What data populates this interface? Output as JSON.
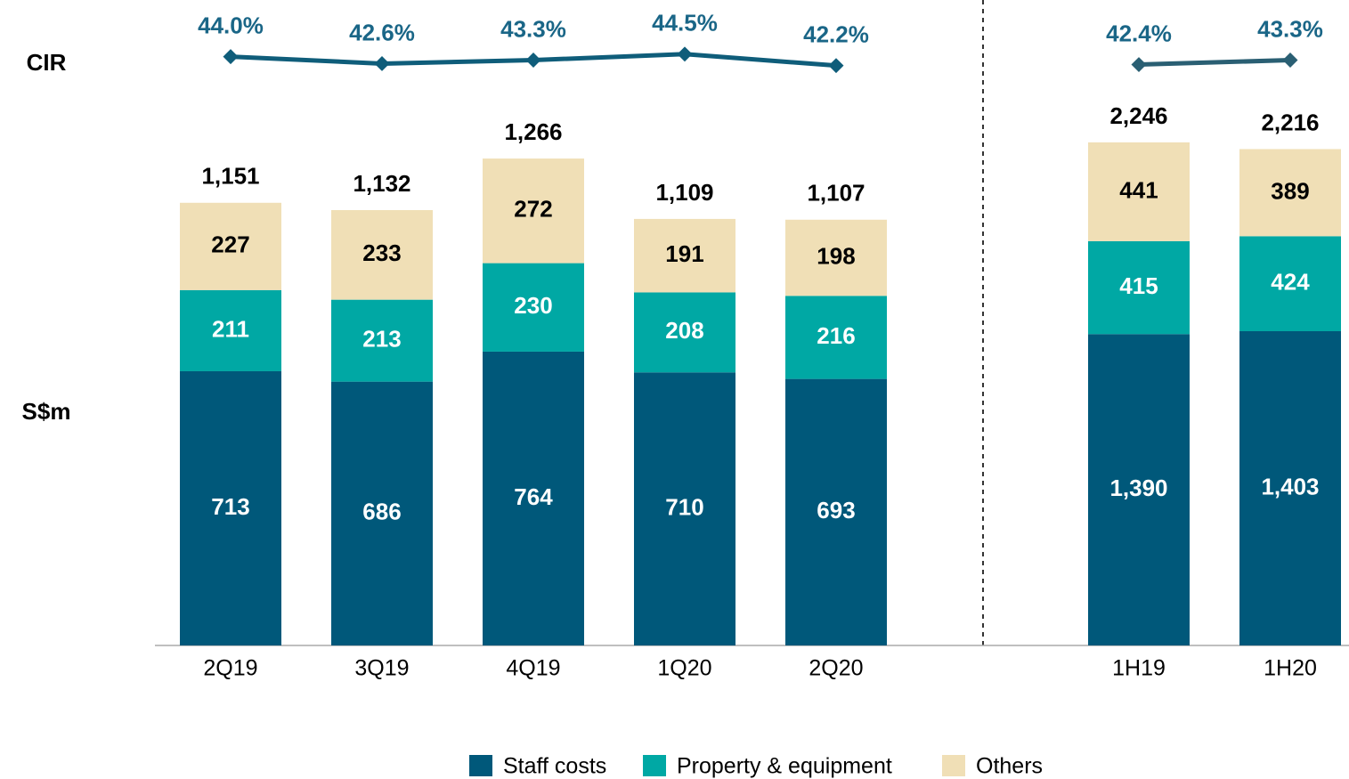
{
  "chart_data": [
    {
      "type": "bar",
      "stacked": true,
      "ylabel": "S$m",
      "y2_label": "CIR",
      "categories": [
        "2Q19",
        "3Q19",
        "4Q19",
        "1Q20",
        "2Q20"
      ],
      "ylim": [
        0,
        1500
      ],
      "y2lim": [
        30,
        50
      ],
      "series": [
        {
          "name": "Staff costs",
          "color": "#00587a",
          "values": [
            713,
            686,
            764,
            710,
            693
          ]
        },
        {
          "name": "Property & equipment",
          "color": "#00a8a4",
          "values": [
            211,
            213,
            230,
            208,
            216
          ]
        },
        {
          "name": "Others",
          "color": "#f0dfb6",
          "values": [
            227,
            233,
            272,
            191,
            198
          ]
        }
      ],
      "totals": [
        1151,
        1132,
        1266,
        1109,
        1107
      ],
      "total_labels": [
        "1,151",
        "1,132",
        "1,266",
        "1,109",
        "1,107"
      ],
      "cir": {
        "type": "line",
        "axis": "y2",
        "color": "#0f5d7a",
        "values": [
          44.0,
          42.6,
          43.3,
          44.5,
          42.2
        ],
        "value_labels": [
          "44.0%",
          "42.6%",
          "43.3%",
          "44.5%",
          "42.2%"
        ]
      }
    },
    {
      "type": "bar",
      "stacked": true,
      "categories": [
        "1H19",
        "1H20"
      ],
      "ylim": [
        0,
        2500
      ],
      "y2lim": [
        30,
        50
      ],
      "series": [
        {
          "values": [
            1390,
            1403
          ],
          "value_labels": [
            "1,390",
            "1,403"
          ]
        },
        {
          "values": [
            415,
            424
          ]
        },
        {
          "values": [
            441,
            389
          ]
        }
      ],
      "totals": [
        2246,
        2216
      ],
      "total_labels": [
        "2,246",
        "2,216"
      ],
      "cir": {
        "type": "line",
        "axis": "y2",
        "color": "#2a5f73",
        "values": [
          42.4,
          43.3
        ],
        "value_labels": [
          "42.4%",
          "43.3%"
        ]
      }
    }
  ]
}
